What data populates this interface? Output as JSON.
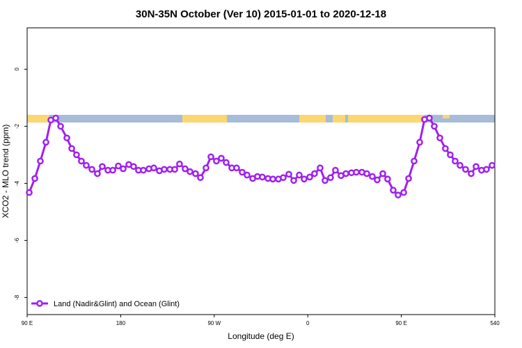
{
  "chart_data": {
    "type": "line",
    "title": "30N-35N October (Ver 10)   2015-01-01 to 2020-12-18",
    "x_label": "Longitude (deg E)",
    "y_label": "XCO2 - MLO trend (ppm)",
    "xlim": [
      90,
      540
    ],
    "ylim": [
      -8.6,
      1.45
    ],
    "xticks": [
      {
        "value": 90,
        "label": "90 E"
      },
      180,
      {
        "value": 270,
        "label": "90 W"
      },
      {
        "value": 360,
        "label": "0"
      },
      {
        "value": 450,
        "label": "90 E"
      },
      540
    ],
    "yticks": [
      0,
      -2,
      -4,
      -6,
      -8
    ],
    "legend": "bottom-left",
    "x": [
      92.0,
      97.4,
      102.7,
      108.1,
      112.8,
      117.5,
      122.2,
      128.2,
      132.9,
      137.5,
      142.2,
      146.9,
      152.3,
      157.6,
      162.3,
      167.7,
      172.4,
      177.7,
      182.4,
      187.8,
      192.4,
      197.1,
      201.8,
      207.2,
      211.9,
      217.2,
      221.9,
      227.3,
      232.0,
      236.6,
      242.0,
      246.7,
      252.0,
      256.7,
      262.1,
      266.8,
      272.1,
      276.8,
      281.5,
      286.9,
      291.5,
      296.9,
      301.6,
      307.0,
      311.6,
      316.3,
      321.7,
      326.4,
      331.7,
      336.4,
      341.8,
      346.5,
      351.8,
      356.5,
      361.9,
      366.5,
      371.9,
      376.6,
      381.9,
      386.6,
      392.0,
      396.7,
      402.0,
      406.7,
      412.1,
      416.8,
      422.1,
      426.8,
      432.2,
      436.8,
      442.2,
      446.9,
      452.3,
      457.0,
      462.3,
      467.7,
      472.3,
      477.0,
      481.7,
      487.1,
      492.4,
      497.1,
      501.8,
      506.5,
      511.8,
      517.2,
      521.9,
      527.2,
      531.9,
      537.3
    ],
    "series": [
      {
        "name": "Land (Nadir&Glint) and Ocean (Glint)",
        "color": "#a020f0",
        "values": [
          -4.32,
          -3.83,
          -3.22,
          -2.56,
          -1.78,
          -1.71,
          -2.0,
          -2.41,
          -2.78,
          -3.0,
          -3.22,
          -3.37,
          -3.51,
          -3.66,
          -3.41,
          -3.54,
          -3.54,
          -3.39,
          -3.49,
          -3.34,
          -3.41,
          -3.54,
          -3.54,
          -3.49,
          -3.46,
          -3.56,
          -3.51,
          -3.51,
          -3.51,
          -3.32,
          -3.49,
          -3.59,
          -3.66,
          -3.8,
          -3.46,
          -3.07,
          -3.22,
          -3.12,
          -3.27,
          -3.46,
          -3.46,
          -3.61,
          -3.71,
          -3.83,
          -3.76,
          -3.78,
          -3.83,
          -3.85,
          -3.85,
          -3.8,
          -3.68,
          -3.9,
          -3.71,
          -3.85,
          -3.78,
          -3.66,
          -3.46,
          -3.9,
          -3.8,
          -3.54,
          -3.73,
          -3.66,
          -3.63,
          -3.61,
          -3.61,
          -3.66,
          -3.76,
          -3.88,
          -3.66,
          -3.85,
          -4.24,
          -4.41,
          -4.32,
          -3.83,
          -3.22,
          -2.56,
          -1.76,
          -1.71,
          -2.0,
          -2.41,
          -2.78,
          -3.0,
          -3.22,
          -3.37,
          -3.51,
          -3.66,
          -3.41,
          -3.54,
          -3.51,
          -3.37
        ]
      }
    ]
  }
}
